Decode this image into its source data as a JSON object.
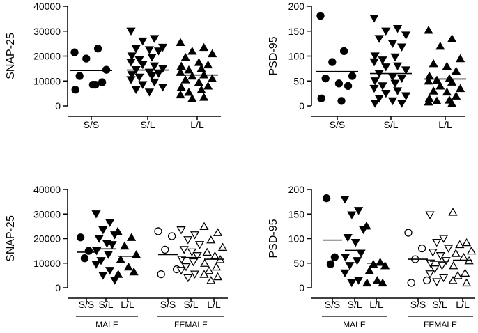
{
  "chart_data": [
    {
      "id": "snap25-overall",
      "type": "scatter",
      "ylabel": "SNAP-25",
      "ylim": [
        0,
        40000
      ],
      "yticks": [
        0,
        10000,
        20000,
        30000,
        40000
      ],
      "categories": [
        "S/S",
        "S/L",
        "L/L"
      ],
      "markers": [
        "circle-filled",
        "triangle-down-filled",
        "triangle-up-filled"
      ],
      "means": [
        14200,
        14400,
        12400
      ],
      "points": [
        [
          21500,
          23000,
          19000,
          14500,
          12000,
          8500,
          9500,
          6500,
          8500
        ],
        [
          30000,
          27000,
          26000,
          23500,
          23000,
          22500,
          22000,
          20000,
          19500,
          18500,
          17500,
          16000,
          16500,
          15000,
          14500,
          13500,
          13000,
          12500,
          12000,
          11500,
          10500,
          9500,
          8500,
          7500,
          6500,
          5500
        ],
        [
          25500,
          23500,
          22000,
          21000,
          19500,
          17500,
          16500,
          16000,
          15000,
          14500,
          13500,
          12500,
          12000,
          11000,
          10500,
          9500,
          8000,
          7500,
          6500,
          5500,
          4500,
          3500,
          3000
        ]
      ]
    },
    {
      "id": "psd95-overall",
      "type": "scatter",
      "ylabel": "PSD-95",
      "ylim": [
        0,
        200
      ],
      "yticks": [
        0,
        50,
        100,
        150,
        200
      ],
      "categories": [
        "S/S",
        "S/L",
        "L/L"
      ],
      "markers": [
        "circle-filled",
        "triangle-down-filled",
        "triangle-up-filled"
      ],
      "means": [
        69,
        65,
        54
      ],
      "points": [
        [
          181,
          110,
          88,
          60,
          55,
          45,
          40,
          15,
          10
        ],
        [
          176,
          155,
          150,
          142,
          135,
          125,
          118,
          100,
          98,
          92,
          88,
          80,
          78,
          72,
          65,
          58,
          55,
          50,
          45,
          40,
          35,
          30,
          25,
          20,
          15,
          10,
          5,
          5
        ],
        [
          152,
          135,
          120,
          95,
          85,
          80,
          70,
          60,
          55,
          52,
          50,
          48,
          40,
          35,
          30,
          28,
          20,
          15,
          12,
          10,
          8,
          5
        ]
      ]
    },
    {
      "id": "snap25-by-sex",
      "type": "scatter",
      "ylabel": "SNAP-25",
      "ylim": [
        0,
        40000
      ],
      "yticks": [
        0,
        10000,
        20000,
        30000,
        40000
      ],
      "categories": [
        "S/S",
        "S/L",
        "L/L",
        "S/S",
        "S/L",
        "L/L"
      ],
      "groups": [
        {
          "label": "MALE",
          "span": [
            0,
            2
          ]
        },
        {
          "label": "FEMALE",
          "span": [
            3,
            5
          ]
        }
      ],
      "markers": [
        "circle-filled",
        "triangle-down-filled",
        "triangle-up-filled",
        "circle-open",
        "triangle-down-open",
        "triangle-up-open"
      ],
      "means": [
        14500,
        15800,
        12800,
        13500,
        12300,
        11600
      ],
      "points": [
        [
          20500,
          15000,
          12000
        ],
        [
          30000,
          26500,
          23500,
          21500,
          20000,
          18000,
          17500,
          15000,
          13500,
          11000,
          9500,
          7000,
          5000,
          3000
        ],
        [
          23000,
          20500,
          17000,
          13500,
          11500,
          8500,
          6500,
          5500
        ],
        [
          23000,
          21000,
          15500,
          7500,
          5500
        ],
        [
          23500,
          21500,
          19500,
          17500,
          15500,
          14500,
          13000,
          11500,
          10500,
          8500,
          7000,
          5500,
          4000
        ],
        [
          25000,
          22500,
          19500,
          16500,
          14500,
          13000,
          11500,
          10000,
          8500,
          7000,
          5500,
          4500,
          3000
        ]
      ]
    },
    {
      "id": "psd95-by-sex",
      "type": "scatter",
      "ylabel": "PSD-95",
      "ylim": [
        0,
        200
      ],
      "yticks": [
        0,
        50,
        100,
        150,
        200
      ],
      "categories": [
        "S/S",
        "S/L",
        "L/L",
        "S/S",
        "S/L",
        "L/L"
      ],
      "groups": [
        {
          "label": "MALE",
          "span": [
            0,
            2
          ]
        },
        {
          "label": "FEMALE",
          "span": [
            3,
            5
          ]
        }
      ],
      "markers": [
        "circle-filled",
        "triangle-down-filled",
        "triangle-up-filled",
        "circle-open",
        "triangle-down-open",
        "triangle-up-open"
      ],
      "means": [
        97,
        76,
        50
      ],
      "means_all": [
        97,
        76,
        50,
        58,
        54,
        56
      ],
      "points": [
        [
          182,
          62,
          48
        ],
        [
          180,
          157,
          148,
          118,
          102,
          92,
          70,
          62,
          55,
          45,
          30,
          15,
          10
        ],
        [
          126,
          52,
          48,
          45,
          35,
          15,
          10,
          10
        ],
        [
          112,
          80,
          58,
          15,
          10
        ],
        [
          148,
          100,
          92,
          80,
          72,
          65,
          55,
          50,
          45,
          38,
          28,
          20,
          12
        ],
        [
          154,
          92,
          88,
          75,
          70,
          62,
          55,
          45,
          30,
          25,
          15,
          10
        ]
      ]
    }
  ]
}
